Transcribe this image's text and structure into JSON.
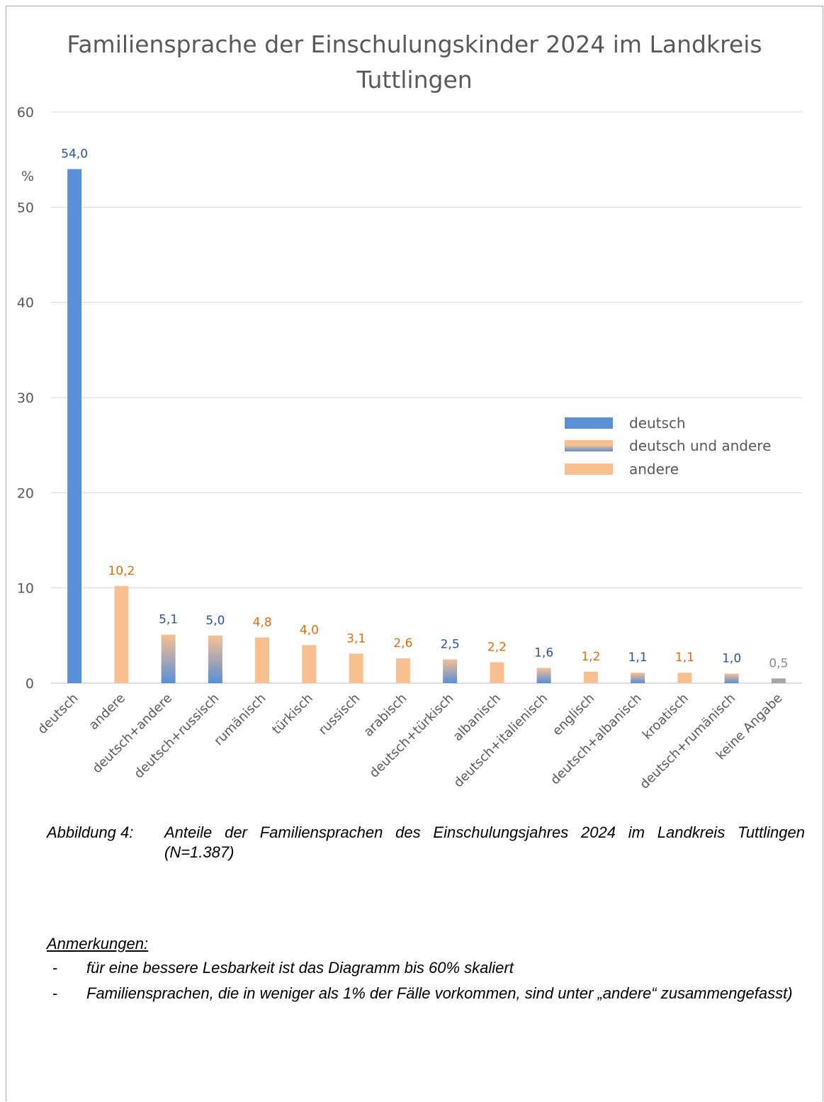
{
  "chart_data": {
    "type": "bar",
    "title": "Familiensprache der Einschulungskinder 2024 im Landkreis Tuttlingen",
    "ylabel": "%",
    "ylim": [
      0,
      60
    ],
    "yticks": [
      "0",
      "10",
      "20",
      "30",
      "40",
      "50",
      "60"
    ],
    "grid": true,
    "legend_position": "right",
    "categories": [
      "deutsch",
      "andere",
      "deutsch+andere",
      "deutsch+russisch",
      "rumänisch",
      "türkisch",
      "russisch",
      "arabisch",
      "deutsch+türkisch",
      "albanisch",
      "deutsch+italienisch",
      "englisch",
      "deutsch+albanisch",
      "kroatisch",
      "deutsch+rumänisch",
      "keine Angabe"
    ],
    "values": [
      54.0,
      10.2,
      5.1,
      5.0,
      4.8,
      4.0,
      3.1,
      2.6,
      2.5,
      2.2,
      1.6,
      1.2,
      1.1,
      1.1,
      1.0,
      0.5
    ],
    "data_labels": [
      "54,0",
      "10,2",
      "5,1",
      "5,0",
      "4,8",
      "4,0",
      "3,1",
      "2,6",
      "2,5",
      "2,2",
      "1,6",
      "1,2",
      "1,1",
      "1,1",
      "1,0",
      "0,5"
    ],
    "groups": [
      "deutsch",
      "andere",
      "mixed",
      "mixed",
      "andere",
      "andere",
      "andere",
      "andere",
      "mixed",
      "andere",
      "mixed",
      "andere",
      "mixed",
      "andere",
      "mixed",
      "none"
    ],
    "legend": [
      {
        "key": "deutsch",
        "label": "deutsch"
      },
      {
        "key": "mixed",
        "label": "deutsch und andere"
      },
      {
        "key": "andere",
        "label": "andere"
      }
    ],
    "colors": {
      "deutsch": "#5a8ed6",
      "andere": "#f8bf90",
      "none": "#a6a6a6",
      "label_blue": "#2f5597",
      "label_orange": "#e36c0a",
      "label_gray": "#8c8c8c"
    }
  },
  "caption": {
    "label": "Abbildung 4:",
    "text": "Anteile der Familiensprachen des Einschulungsjahres 2024 im Landkreis Tuttlingen (N=1.387)"
  },
  "notes": {
    "heading": "Anmerkungen:",
    "dash": "-",
    "items": [
      "für eine bessere Lesbarkeit ist das Diagramm bis 60% skaliert",
      "Familiensprachen, die in weniger als 1% der Fälle vorkommen, sind unter „andere“ zusammengefasst)"
    ]
  }
}
